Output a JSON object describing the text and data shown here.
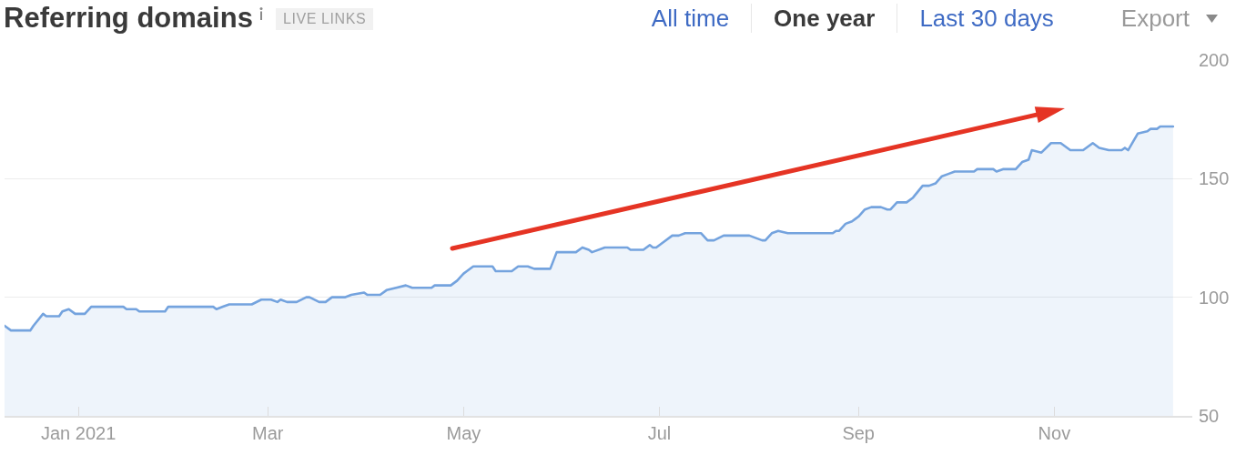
{
  "chart_data": {
    "type": "area",
    "title": "Referring domains",
    "subtitle": "LIVE LINKS",
    "annotations": [
      "All time",
      "One year",
      "Last 30 days",
      "Export"
    ],
    "x": [
      "2020-12-09",
      "2020-12-11",
      "2020-12-17",
      "2020-12-18",
      "2020-12-21",
      "2020-12-22",
      "2020-12-26",
      "2020-12-27",
      "2020-12-29",
      "2020-12-31",
      "2021-01-03",
      "2021-01-05",
      "2021-01-15",
      "2021-01-16",
      "2021-01-19",
      "2021-01-20",
      "2021-01-28",
      "2021-01-29",
      "2021-02-12",
      "2021-02-13",
      "2021-02-15",
      "2021-02-17",
      "2021-02-24",
      "2021-02-27",
      "2021-03-02",
      "2021-03-04",
      "2021-03-05",
      "2021-03-07",
      "2021-03-10",
      "2021-03-13",
      "2021-03-14",
      "2021-03-17",
      "2021-03-19",
      "2021-03-21",
      "2021-03-25",
      "2021-03-27",
      "2021-03-31",
      "2021-04-01",
      "2021-04-05",
      "2021-04-07",
      "2021-04-10",
      "2021-04-13",
      "2021-04-15",
      "2021-04-21",
      "2021-04-22",
      "2021-04-27",
      "2021-04-29",
      "2021-05-01",
      "2021-05-02",
      "2021-05-04",
      "2021-05-10",
      "2021-05-11",
      "2021-05-16",
      "2021-05-18",
      "2021-05-21",
      "2021-05-23",
      "2021-05-28",
      "2021-05-30",
      "2021-06-05",
      "2021-06-07",
      "2021-06-09",
      "2021-06-10",
      "2021-06-14",
      "2021-06-21",
      "2021-06-22",
      "2021-06-26",
      "2021-06-28",
      "2021-06-29",
      "2021-06-30",
      "2021-07-02",
      "2021-07-05",
      "2021-07-07",
      "2021-07-09",
      "2021-07-14",
      "2021-07-16",
      "2021-07-18",
      "2021-07-21",
      "2021-07-29",
      "2021-08-02",
      "2021-08-03",
      "2021-08-05",
      "2021-08-07",
      "2021-08-10",
      "2021-08-24",
      "2021-08-25",
      "2021-08-26",
      "2021-08-28",
      "2021-08-30",
      "2021-08-31",
      "2021-09-01",
      "2021-09-03",
      "2021-09-05",
      "2021-09-08",
      "2021-09-10",
      "2021-09-11",
      "2021-09-13",
      "2021-09-16",
      "2021-09-18",
      "2021-09-21",
      "2021-09-23",
      "2021-09-25",
      "2021-09-27",
      "2021-09-29",
      "2021-10-01",
      "2021-10-07",
      "2021-10-08",
      "2021-10-13",
      "2021-10-14",
      "2021-10-16",
      "2021-10-20",
      "2021-10-22",
      "2021-10-24",
      "2021-10-25",
      "2021-10-28",
      "2021-10-31",
      "2021-11-03",
      "2021-11-06",
      "2021-11-10",
      "2021-11-13",
      "2021-11-15",
      "2021-11-18",
      "2021-11-22",
      "2021-11-23",
      "2021-11-24",
      "2021-11-27",
      "2021-11-30",
      "2021-12-01",
      "2021-12-03",
      "2021-12-04",
      "2021-12-08"
    ],
    "series": [
      {
        "color": "#74a3de",
        "values": [
          88,
          86,
          86,
          88,
          93,
          92,
          92,
          94,
          95,
          93,
          93,
          96,
          96,
          95,
          95,
          94,
          94,
          96,
          96,
          95,
          96,
          97,
          97,
          99,
          99,
          98,
          99,
          98,
          98,
          100,
          100,
          98,
          98,
          100,
          100,
          101,
          102,
          101,
          101,
          103,
          104,
          105,
          104,
          104,
          105,
          105,
          107,
          110,
          111,
          113,
          113,
          111,
          111,
          113,
          113,
          112,
          112,
          119,
          119,
          121,
          120,
          119,
          121,
          121,
          120,
          120,
          122,
          121,
          121,
          123,
          126,
          126,
          127,
          127,
          124,
          124,
          126,
          126,
          124,
          124,
          127,
          128,
          127,
          127,
          128,
          128,
          131,
          132,
          133,
          134,
          137,
          138,
          138,
          137,
          137,
          140,
          140,
          142,
          147,
          147,
          148,
          151,
          152,
          153,
          153,
          154,
          154,
          153,
          154,
          154,
          157,
          158,
          162,
          161,
          165,
          165,
          162,
          162,
          165,
          163,
          162,
          162,
          163,
          162,
          169,
          170,
          171,
          171,
          172,
          172
        ]
      }
    ],
    "xlim": [
      "2020-12-09",
      "2021-12-14"
    ],
    "xticks": [
      {
        "value": "2021-01-01",
        "label": "Jan 2021"
      },
      {
        "value": "2021-03-01",
        "label": "Mar"
      },
      {
        "value": "2021-05-01",
        "label": "May"
      },
      {
        "value": "2021-07-01",
        "label": "Jul"
      },
      {
        "value": "2021-09-01",
        "label": "Sep"
      },
      {
        "value": "2021-11-01",
        "label": "Nov"
      }
    ],
    "ylim": [
      50,
      200
    ],
    "yticks": [
      50,
      100,
      150,
      200
    ],
    "grid": "y"
  }
}
